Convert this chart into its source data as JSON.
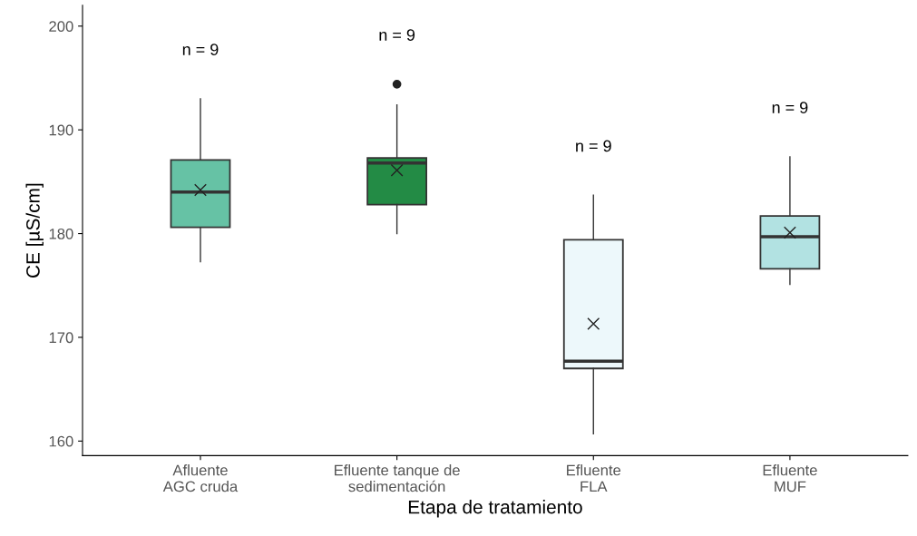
{
  "chart_data": {
    "type": "box",
    "xlabel": "Etapa de tratamiento",
    "ylabel": "CE [µS/cm]",
    "categories": [
      "Afluente\nAGC cruda",
      "Efluente tanque de\nsedimentación",
      "Efluente\nFLA",
      "Efluente\nMUF"
    ],
    "colors": [
      "#66c2a5",
      "#238b45",
      "#edf8fb",
      "#b2e2e2"
    ],
    "boxes": [
      {
        "low": 177.3,
        "q1": 180.6,
        "median": 184.0,
        "q3": 187.1,
        "high": 193.0,
        "mean": 184.2
      },
      {
        "low": 180.0,
        "q1": 182.8,
        "median": 186.8,
        "q3": 187.3,
        "high": 192.4,
        "mean": 186.1,
        "outliers": [
          194.4
        ]
      },
      {
        "low": 160.7,
        "q1": 167.0,
        "median": 167.7,
        "q3": 179.4,
        "high": 183.7,
        "mean": 171.3
      },
      {
        "low": 175.1,
        "q1": 176.6,
        "median": 179.7,
        "q3": 181.7,
        "high": 187.4,
        "mean": 180.1
      }
    ],
    "ylim": [
      158.6,
      202.0
    ],
    "yticks": [
      160,
      170,
      180,
      190,
      200
    ],
    "grid": false,
    "marker": "cross",
    "annotations": [
      "n = 9",
      "n = 9",
      "n = 9",
      "n = 9"
    ]
  }
}
